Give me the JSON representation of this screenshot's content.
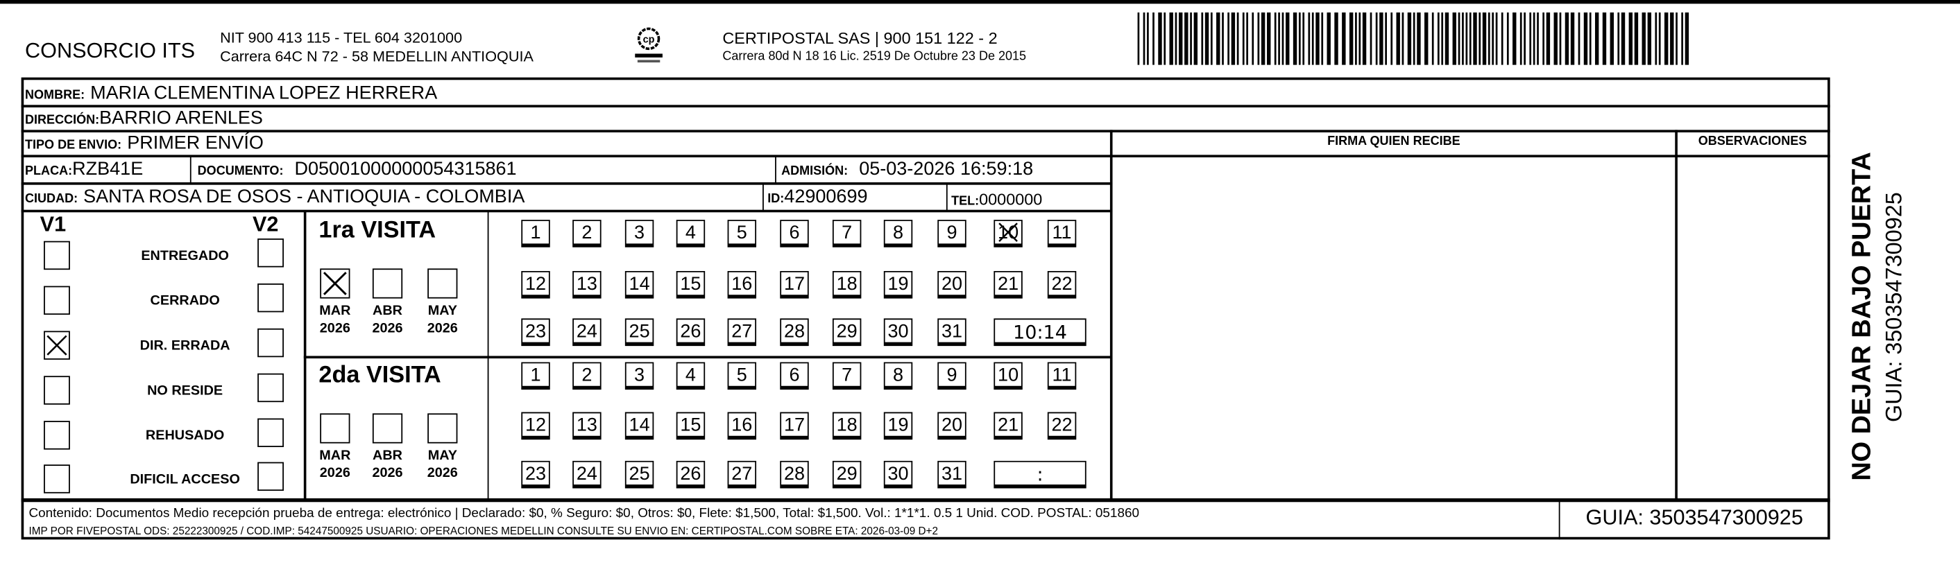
{
  "header": {
    "company": "CONSORCIO ITS",
    "nit_tel": "NIT 900 413 115 - TEL 604 3201000",
    "company_address": "Carrera 64C N 72 - 58 MEDELLIN ANTIOQUIA",
    "logo_text": "CERTIPOSTAL",
    "carrier": "CERTIPOSTAL SAS | 900 151 122 - 2",
    "carrier_address": "Carrera 80d N 18 16  Lic. 2519 De Octubre 23 De 2015"
  },
  "fields": {
    "nombre_label": "NOMBRE:",
    "nombre": "MARIA CLEMENTINA LOPEZ HERRERA",
    "direccion_label": "DIRECCIÓN:",
    "direccion": "BARRIO ARENLES",
    "tipo_label": "TIPO DE ENVIO:",
    "tipo": "PRIMER ENVÍO",
    "placa_label": "PLACA:",
    "placa": "RZB41E",
    "documento_label": "DOCUMENTO:",
    "documento": "D05001000000054315861",
    "admision_label": "ADMISIÓN:",
    "admision": "05-03-2026 16:59:18",
    "ciudad_label": "CIUDAD:",
    "ciudad": "SANTA ROSA DE OSOS - ANTIOQUIA - COLOMBIA",
    "id_label": "ID:",
    "id": "42900699",
    "tel_label": "TEL:",
    "tel": "0000000"
  },
  "columns": {
    "firma": "FIRMA QUIEN RECIBE",
    "observaciones": "OBSERVACIONES"
  },
  "status": {
    "v1": "V1",
    "v2": "V2",
    "options": [
      {
        "label": "ENTREGADO",
        "v1": false,
        "v2": false
      },
      {
        "label": "CERRADO",
        "v1": false,
        "v2": false
      },
      {
        "label": "DIR. ERRADA",
        "v1": true,
        "v2": false
      },
      {
        "label": "NO RESIDE",
        "v1": false,
        "v2": false
      },
      {
        "label": "REHUSADO",
        "v1": false,
        "v2": false
      },
      {
        "label": "DIFICIL ACCESO",
        "v1": false,
        "v2": false
      }
    ]
  },
  "visits": [
    {
      "title": "1ra VISITA",
      "months": [
        {
          "m": "MAR",
          "y": "2026",
          "checked": true
        },
        {
          "m": "ABR",
          "y": "2026",
          "checked": false
        },
        {
          "m": "MAY",
          "y": "2026",
          "checked": false
        }
      ],
      "marked_day": 10,
      "time": "10:14"
    },
    {
      "title": "2da VISITA",
      "months": [
        {
          "m": "MAR",
          "y": "2026",
          "checked": false
        },
        {
          "m": "ABR",
          "y": "2026",
          "checked": false
        },
        {
          "m": "MAY",
          "y": "2026",
          "checked": false
        }
      ],
      "marked_day": null,
      "time": ":"
    }
  ],
  "footer": {
    "line1": "Contenido: Documentos Medio recepción prueba de entrega: electrónico | Declarado: $0, % Seguro: $0, Otros: $0, Flete: $1,500, Total: $1,500. Vol.: 1*1*1. 0.5  1 Unid. COD. POSTAL: 051860",
    "line2": "IMP POR FIVEPOSTAL ODS: 25222300925 / COD.IMP: 54247500925 USUARIO: OPERACIONES MEDELLIN CONSULTE SU ENVIO EN: CERTIPOSTAL.COM SOBRE ETA: 2026-03-09 D+2",
    "guia": "GUIA: 3503547300925"
  },
  "side": {
    "warning": "NO DEJAR BAJO PUERTA",
    "guia": "GUIA: 3503547300925"
  }
}
